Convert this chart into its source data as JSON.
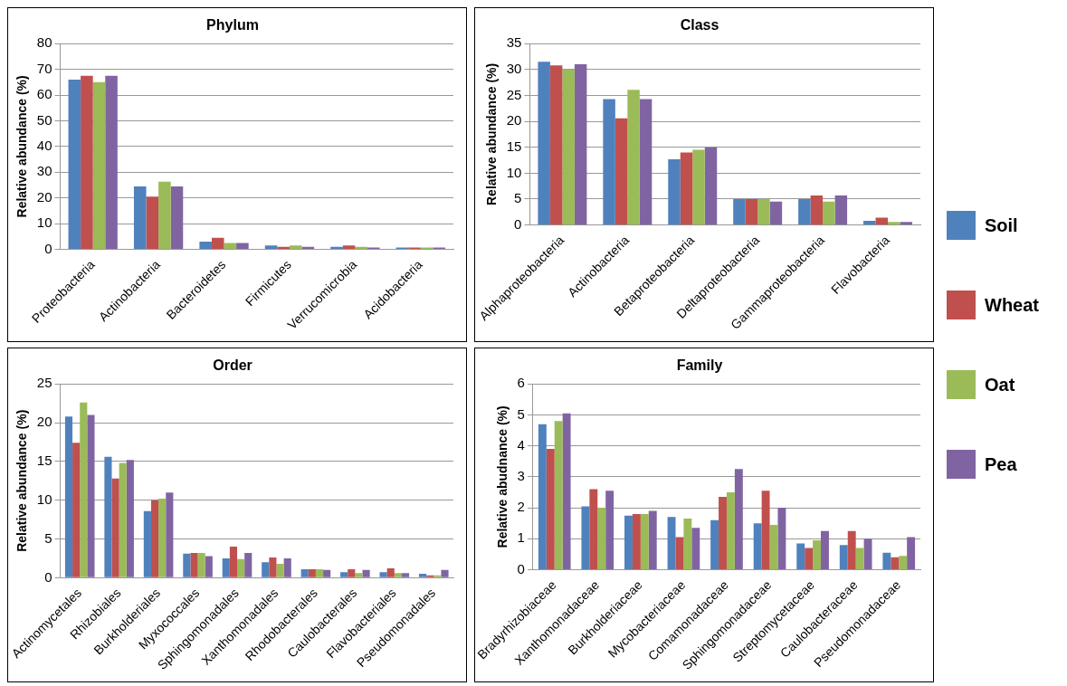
{
  "chart_data": [
    {
      "type": "bar",
      "title": "Phylum",
      "ylabel": "Relative abundance (%)",
      "categories": [
        "Proteobacteria",
        "Actinobacteria",
        "Bacteroidetes",
        "Firmicutes",
        "Verrucomicrobia",
        "Acidobacteria"
      ],
      "ylim": [
        0,
        80
      ],
      "yticks": [
        0,
        10,
        20,
        30,
        40,
        50,
        60,
        70,
        80
      ],
      "grid": "y",
      "legend": "right",
      "series": [
        {
          "name": "Soil",
          "color": "#4f81bd",
          "values": [
            66,
            24.5,
            3,
            1.5,
            1,
            0.7
          ]
        },
        {
          "name": "Wheat",
          "color": "#c0504d",
          "values": [
            67.5,
            20.5,
            4.5,
            1,
            1.5,
            0.7
          ]
        },
        {
          "name": "Oat",
          "color": "#9bbb59",
          "values": [
            65,
            26.3,
            2.5,
            1.5,
            1,
            0.7
          ]
        },
        {
          "name": "Pea",
          "color": "#8064a2",
          "values": [
            67.5,
            24.5,
            2.5,
            1,
            0.7,
            0.7
          ]
        }
      ]
    },
    {
      "type": "bar",
      "title": "Class",
      "ylabel": "Relative abundance (%)",
      "categories": [
        "Alphaproteobacteria",
        "Actinobacteria",
        "Betaproteobacteria",
        "Deltaproteobacteria",
        "Gammaproteobacteria",
        "Flavobacteria"
      ],
      "ylim": [
        0,
        35
      ],
      "yticks": [
        0,
        5,
        10,
        15,
        20,
        25,
        30,
        35
      ],
      "grid": "y",
      "series": [
        {
          "color": "#4f81bd",
          "values": [
            31.5,
            24.3,
            12.7,
            5,
            5,
            0.8
          ]
        },
        {
          "color": "#c0504d",
          "values": [
            30.8,
            20.6,
            14,
            5,
            5.7,
            1.4
          ]
        },
        {
          "color": "#9bbb59",
          "values": [
            30,
            26.1,
            14.5,
            5,
            4.5,
            0.6
          ]
        },
        {
          "color": "#8064a2",
          "values": [
            31,
            24.3,
            15,
            4.5,
            5.7,
            0.6
          ]
        }
      ]
    },
    {
      "type": "bar",
      "title": "Order",
      "ylabel": "Relative abundance (%)",
      "categories": [
        "Actinomycetales",
        "Rhizobiales",
        "Burkholderiales",
        "Myxococcales",
        "Sphingomonadales",
        "Xanthomonadales",
        "Rhodobacterales",
        "Caulobacterales",
        "Flavobacteriales",
        "Pseudomonadales"
      ],
      "ylim": [
        0,
        25
      ],
      "yticks": [
        0,
        5,
        10,
        15,
        20,
        25
      ],
      "grid": "y",
      "series": [
        {
          "color": "#4f81bd",
          "values": [
            20.8,
            15.6,
            8.6,
            3.1,
            2.5,
            2,
            1.1,
            0.7,
            0.7,
            0.5
          ]
        },
        {
          "color": "#c0504d",
          "values": [
            17.4,
            12.8,
            10,
            3.2,
            4,
            2.6,
            1.1,
            1.1,
            1.2,
            0.3
          ]
        },
        {
          "color": "#9bbb59",
          "values": [
            22.6,
            14.8,
            10.2,
            3.2,
            2.4,
            1.8,
            1.1,
            0.6,
            0.6,
            0.3
          ]
        },
        {
          "color": "#8064a2",
          "values": [
            21,
            15.2,
            11,
            2.8,
            3.2,
            2.5,
            1,
            1,
            0.6,
            1
          ]
        }
      ]
    },
    {
      "type": "bar",
      "title": "Family",
      "ylabel": "Relative abudnance (%)",
      "categories": [
        "Bradyrhizobiaceae",
        "Xanthomonadaceae",
        "Burkholderiaceae",
        "Mycobacteriaceae",
        "Comamonadaceae",
        "Sphingomonadaceae",
        "Streptomycetaceae",
        "Caulobacteraceae",
        "Pseudomonadaceae"
      ],
      "ylim": [
        0,
        6
      ],
      "yticks": [
        0,
        1,
        2,
        3,
        4,
        5,
        6
      ],
      "grid": "y",
      "series": [
        {
          "color": "#4f81bd",
          "values": [
            4.7,
            2.05,
            1.75,
            1.7,
            1.6,
            1.5,
            0.85,
            0.8,
            0.55
          ]
        },
        {
          "color": "#c0504d",
          "values": [
            3.9,
            2.6,
            1.8,
            1.05,
            2.35,
            2.55,
            0.7,
            1.25,
            0.4
          ]
        },
        {
          "color": "#9bbb59",
          "values": [
            4.8,
            2,
            1.8,
            1.65,
            2.5,
            1.45,
            0.95,
            0.7,
            0.45
          ]
        },
        {
          "color": "#8064a2",
          "values": [
            5.05,
            2.55,
            1.9,
            1.35,
            3.25,
            2,
            1.25,
            1,
            1.05
          ]
        }
      ]
    }
  ]
}
